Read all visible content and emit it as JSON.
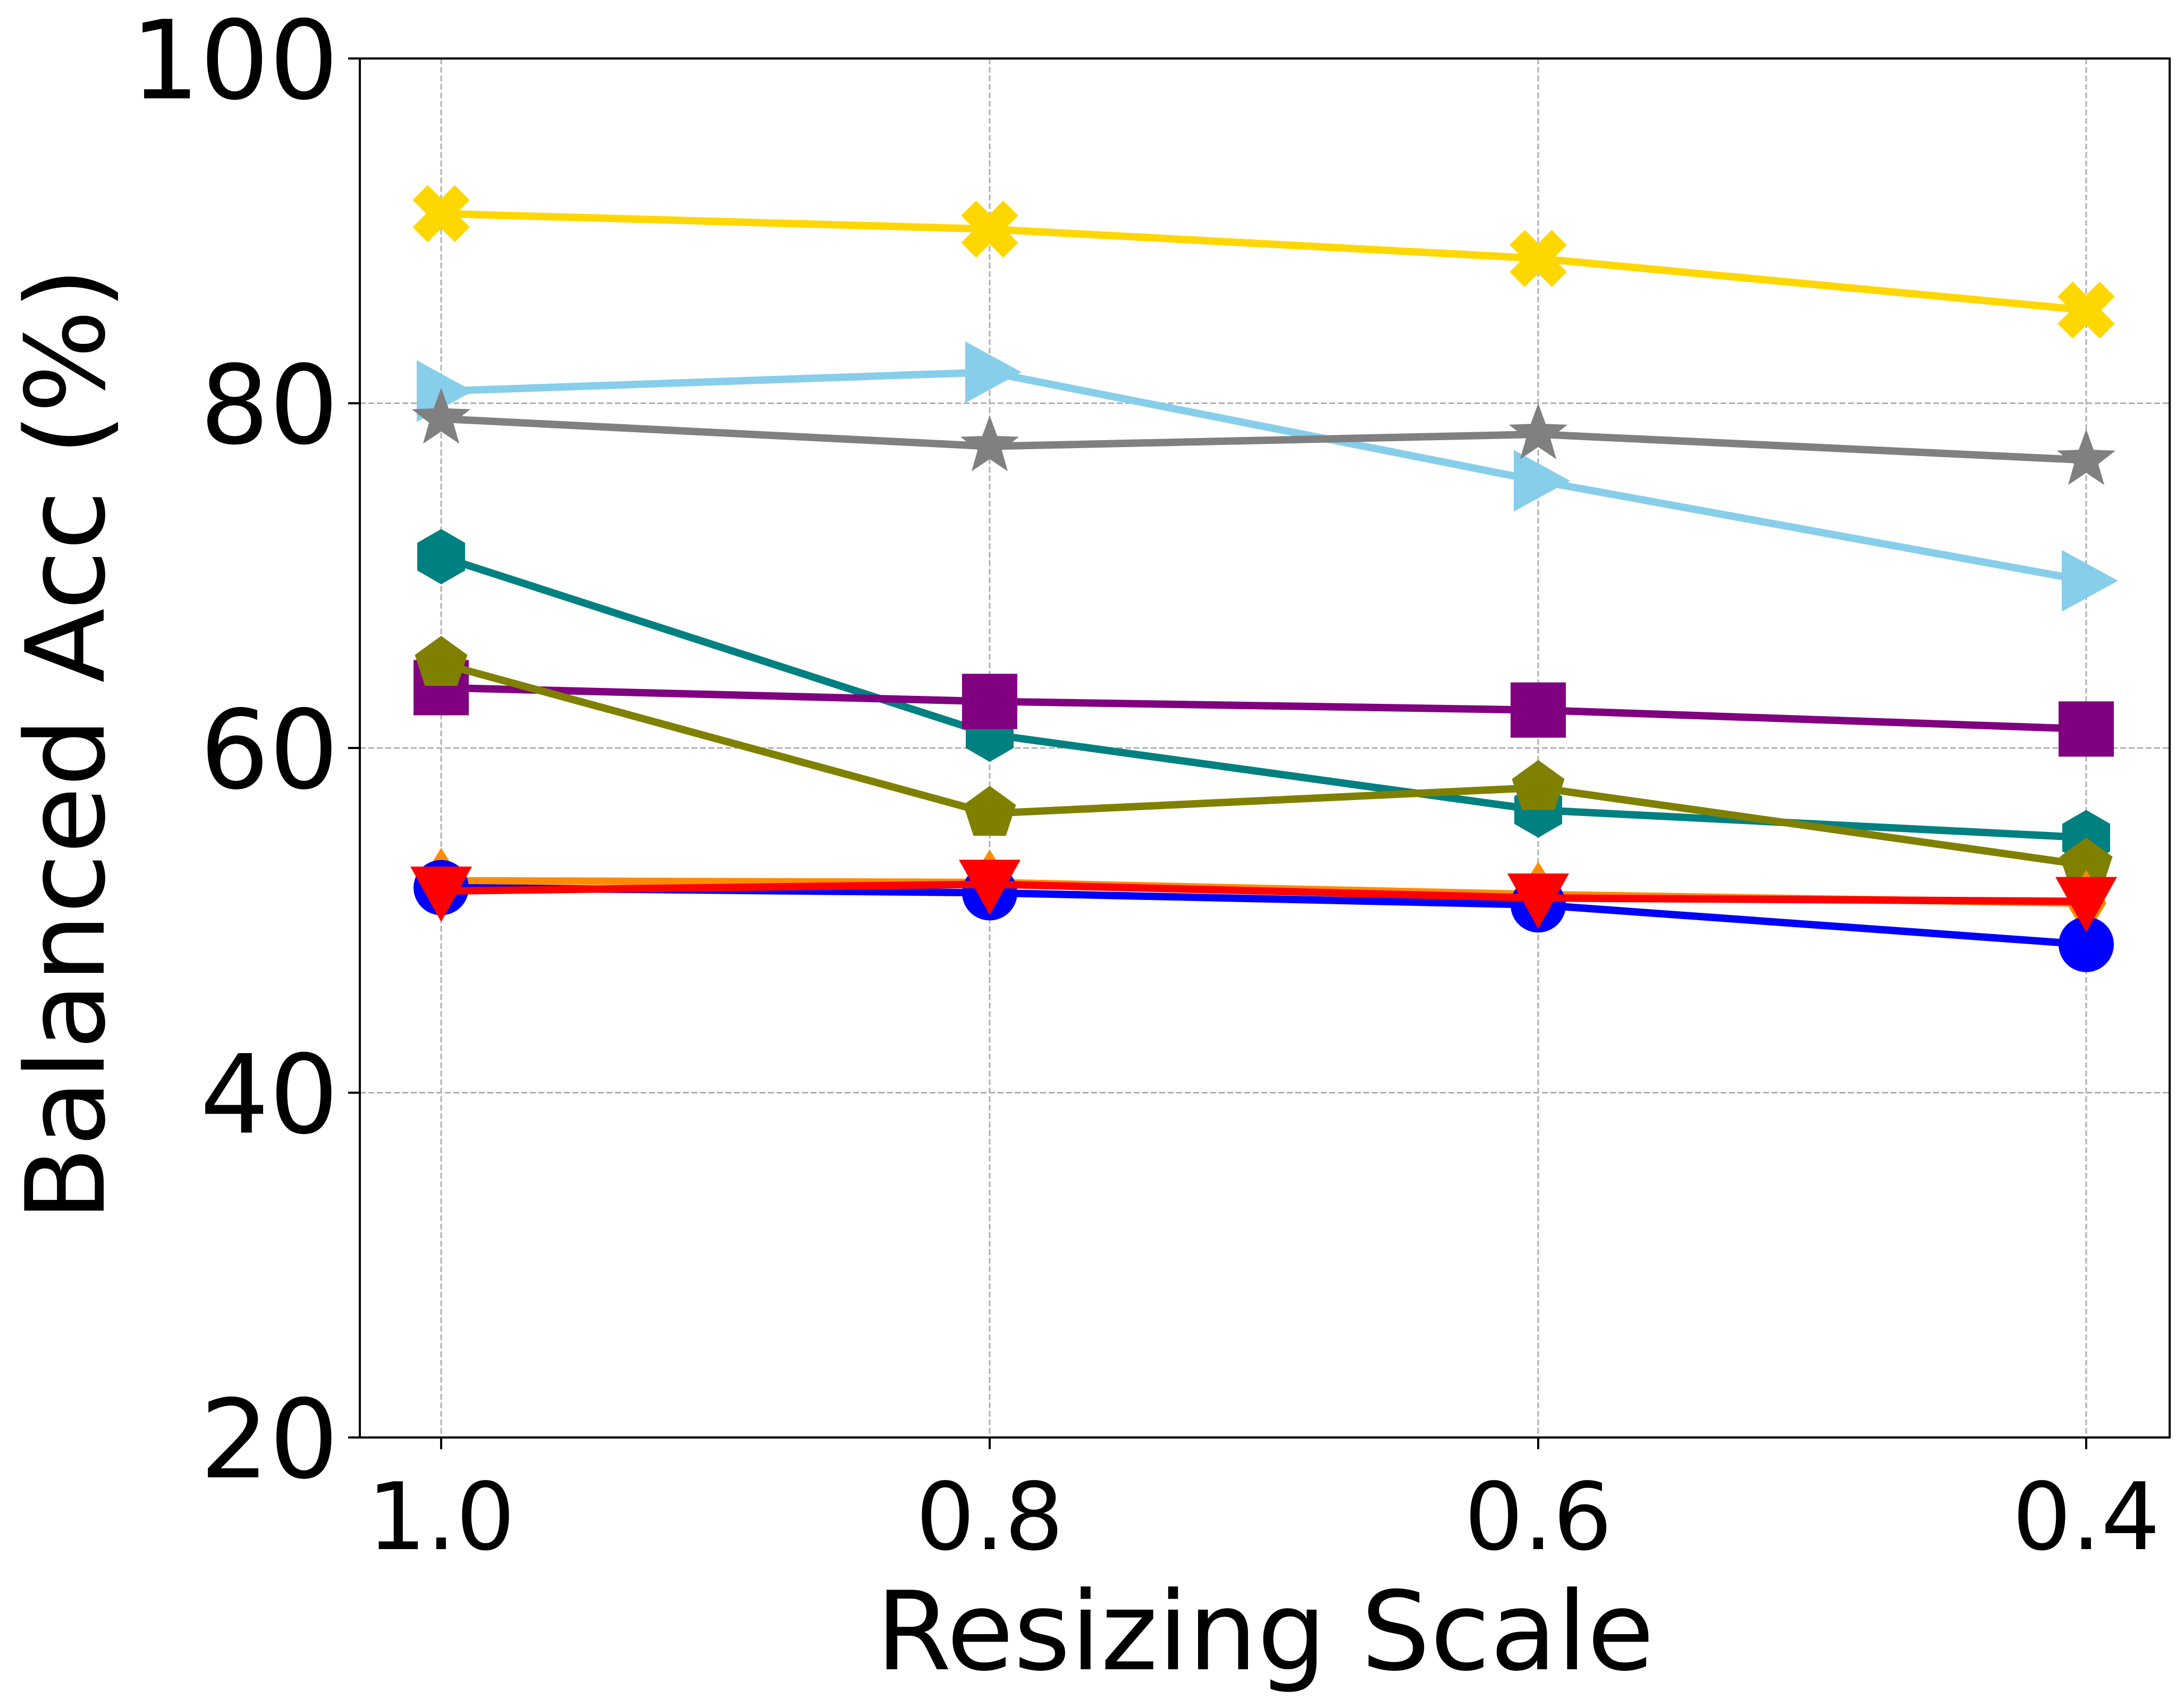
{
  "chart_data": {
    "type": "line",
    "title": "",
    "xlabel": "Resizing Scale",
    "ylabel": "Balanced Acc (%)",
    "categories": [
      "1.0",
      "0.8",
      "0.6",
      "0.4"
    ],
    "ylim": [
      20,
      100
    ],
    "yticks": [
      "20",
      "40",
      "60",
      "80",
      "100"
    ],
    "grid": true,
    "legend": "none",
    "series": [
      {
        "name": "yellow-x",
        "color": "#FFD700",
        "marker": "X",
        "values": [
          91.0,
          90.1,
          88.4,
          85.4
        ]
      },
      {
        "name": "skyblue-triangle-right",
        "color": "#87CEEB",
        "marker": "triangle-right",
        "values": [
          80.7,
          81.8,
          75.5,
          69.7
        ]
      },
      {
        "name": "gray-star",
        "color": "#808080",
        "marker": "star",
        "values": [
          79.1,
          77.5,
          78.2,
          76.7
        ]
      },
      {
        "name": "teal-hexagon",
        "color": "#008080",
        "marker": "hexagon",
        "values": [
          71.1,
          60.8,
          56.4,
          54.8
        ]
      },
      {
        "name": "purple-square",
        "color": "#800080",
        "marker": "square",
        "values": [
          63.5,
          62.7,
          62.2,
          61.1
        ]
      },
      {
        "name": "olive-pentagon",
        "color": "#808000",
        "marker": "pentagon",
        "values": [
          64.9,
          56.2,
          57.7,
          53.2
        ]
      },
      {
        "name": "orange-diamond",
        "color": "#FF8C00",
        "marker": "diamond",
        "values": [
          52.3,
          52.2,
          51.5,
          51.0
        ]
      },
      {
        "name": "blue-circle",
        "color": "#0000FF",
        "marker": "circle",
        "values": [
          51.9,
          51.6,
          50.9,
          48.6
        ]
      },
      {
        "name": "red-triangle-down",
        "color": "#FF0000",
        "marker": "triangle-down",
        "values": [
          51.7,
          52.1,
          51.3,
          51.1
        ]
      }
    ]
  }
}
